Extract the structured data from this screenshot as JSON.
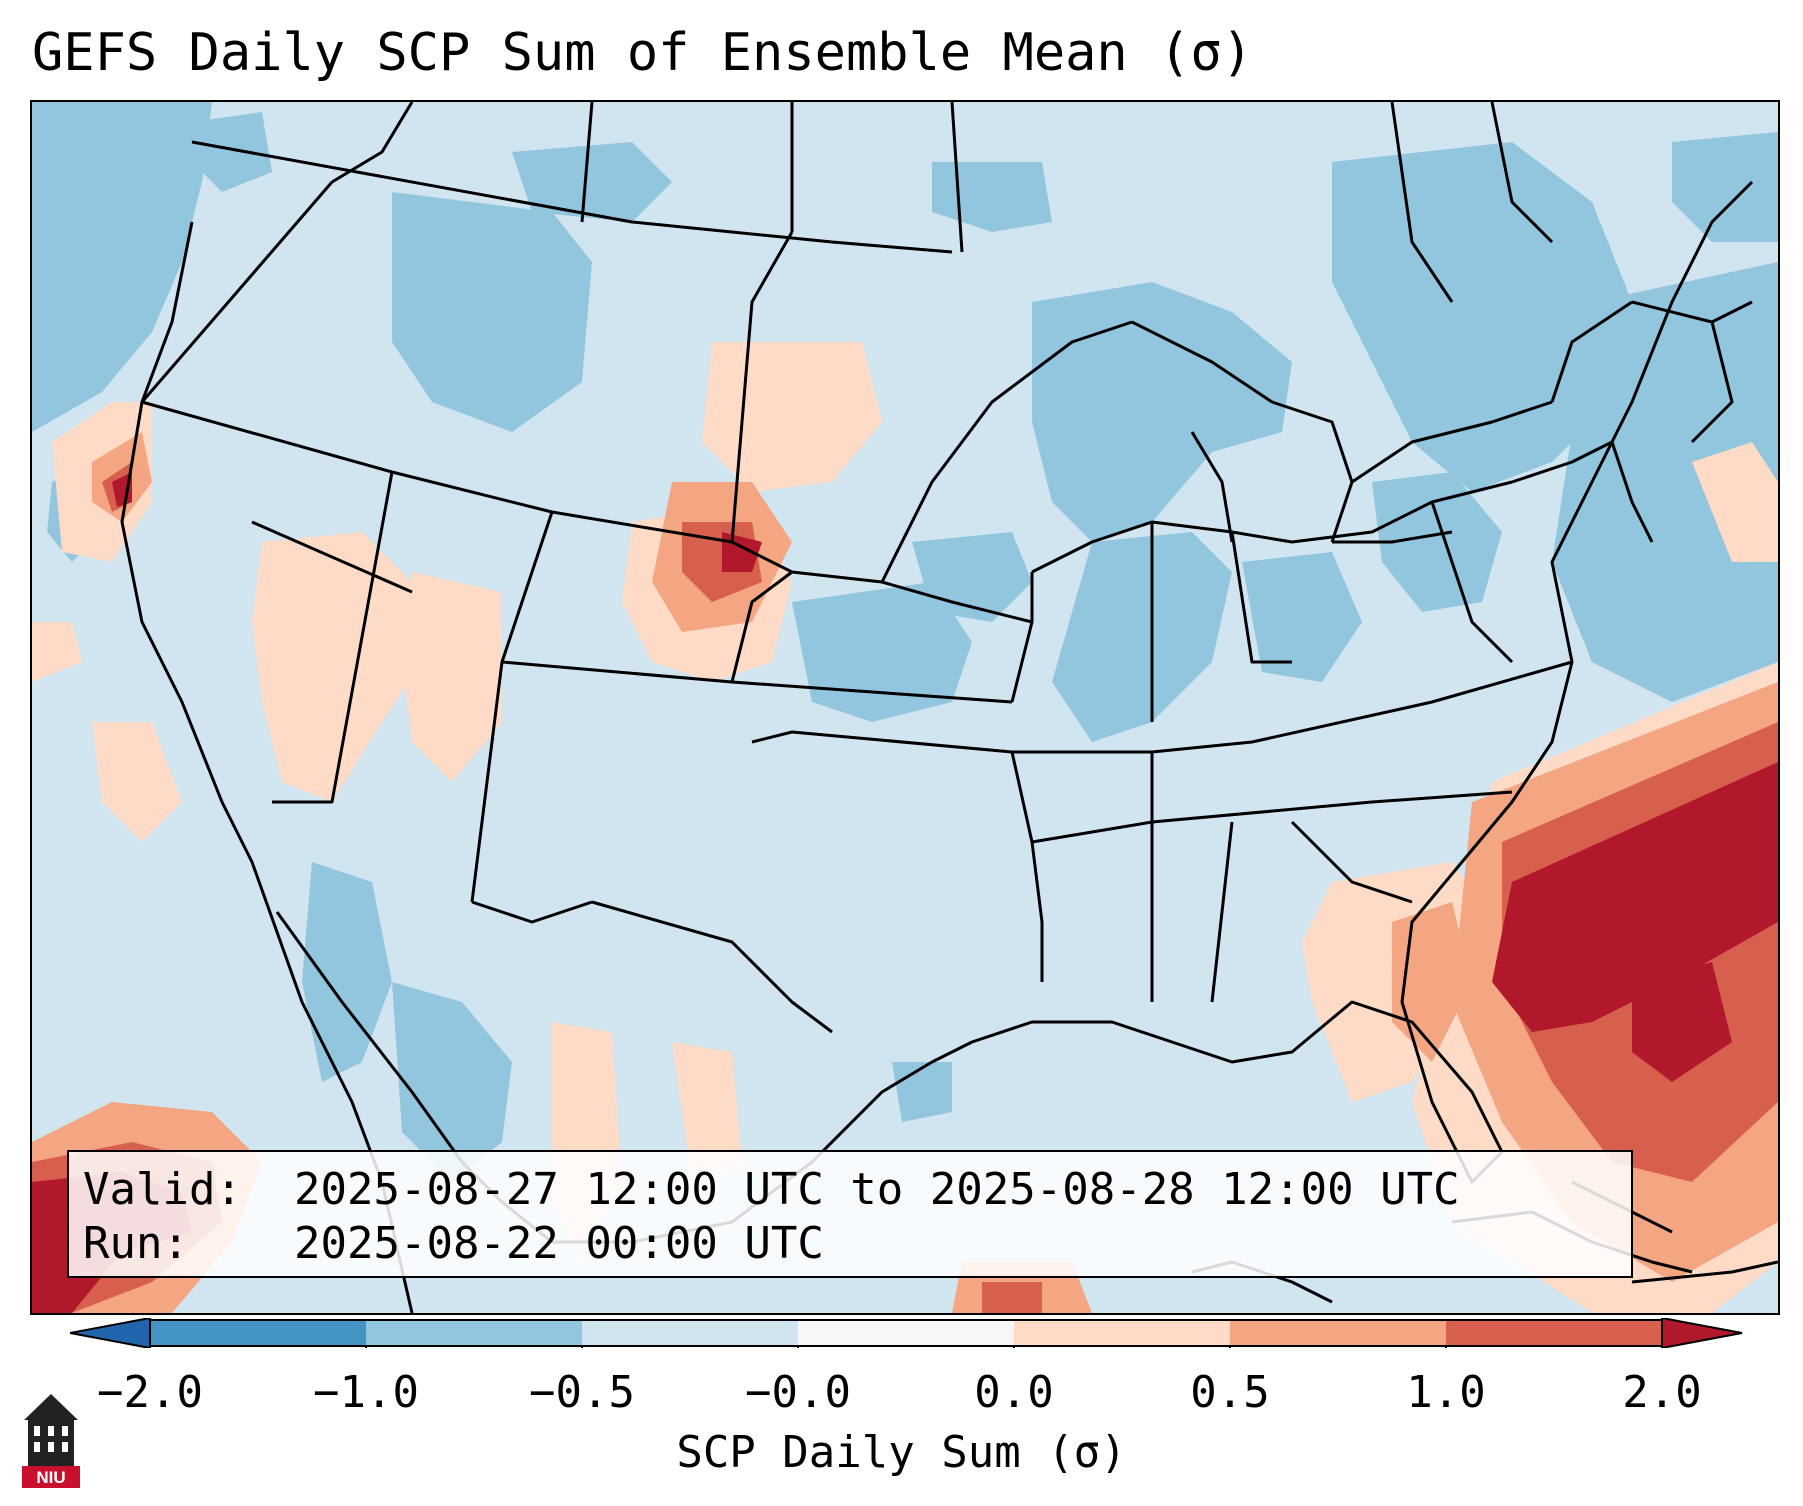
{
  "title": "GEFS Daily SCP Sum of Ensemble Mean (σ)",
  "info": {
    "valid_key": "Valid:",
    "valid_value": "2025-08-27 12:00 UTC to 2025-08-28 12:00 UTC",
    "run_key": "Run:",
    "run_value": "2025-08-22 00:00 UTC"
  },
  "colorbar": {
    "label": "SCP Daily Sum (σ)",
    "ticks": [
      "−2.0",
      "−1.0",
      "−0.5",
      "−0.0",
      "0.0",
      "0.5",
      "1.0",
      "2.0"
    ],
    "colors": {
      "extend_low": "#2166ac",
      "c1": "#4393c3",
      "c2": "#92c5de",
      "c3": "#d1e5f0",
      "c4": "#f7f7f7",
      "c5": "#fddbc7",
      "c6": "#f4a582",
      "c7": "#d6604d",
      "extend_high": "#b2182b"
    }
  },
  "logo": {
    "text": "NIU",
    "icon": "niu-building-icon"
  }
}
